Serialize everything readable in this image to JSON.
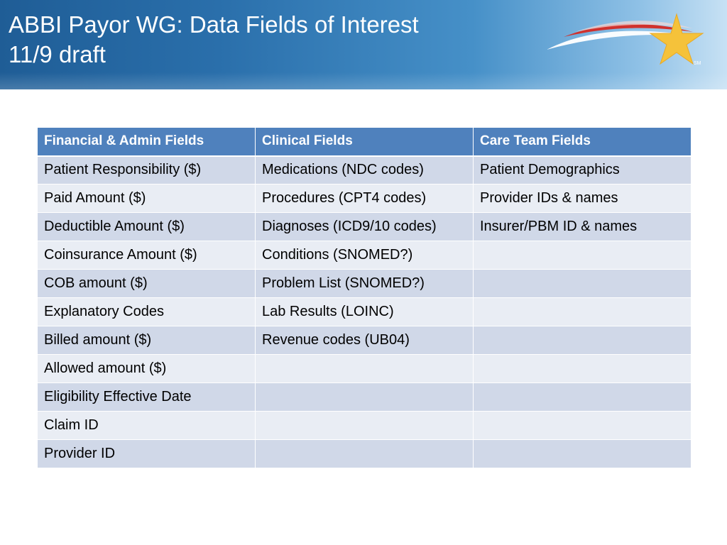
{
  "slide": {
    "title_line1": "ABBI Payor WG: Data Fields of Interest",
    "title_line2": "11/9 draft",
    "logo_mark": "SM"
  },
  "colors": {
    "header_band": "#2a6fab",
    "table_header": "#4f81bd",
    "row_dark": "#d0d8e8",
    "row_light": "#e9edf4",
    "star": "#f5c23a",
    "swoosh_red": "#d0312d",
    "swoosh_white": "#ffffff"
  },
  "icons": {
    "logo": "star-swoosh-logo"
  },
  "table": {
    "headers": [
      "Financial & Admin Fields",
      "Clinical Fields",
      "Care Team Fields"
    ],
    "rows": [
      [
        "Patient Responsibility ($)",
        "Medications (NDC codes)",
        "Patient Demographics"
      ],
      [
        "Paid Amount ($)",
        "Procedures (CPT4 codes)",
        "Provider IDs & names"
      ],
      [
        "Deductible Amount ($)",
        "Diagnoses (ICD9/10 codes)",
        "Insurer/PBM ID & names"
      ],
      [
        "Coinsurance Amount ($)",
        "Conditions (SNOMED?)",
        ""
      ],
      [
        "COB amount ($)",
        "Problem List (SNOMED?)",
        ""
      ],
      [
        "Explanatory Codes",
        "Lab Results (LOINC)",
        ""
      ],
      [
        "Billed amount ($)",
        "Revenue codes (UB04)",
        ""
      ],
      [
        "Allowed amount ($)",
        "",
        ""
      ],
      [
        "Eligibility Effective Date",
        "",
        ""
      ],
      [
        "Claim ID",
        "",
        ""
      ],
      [
        "Provider ID",
        "",
        ""
      ]
    ]
  }
}
